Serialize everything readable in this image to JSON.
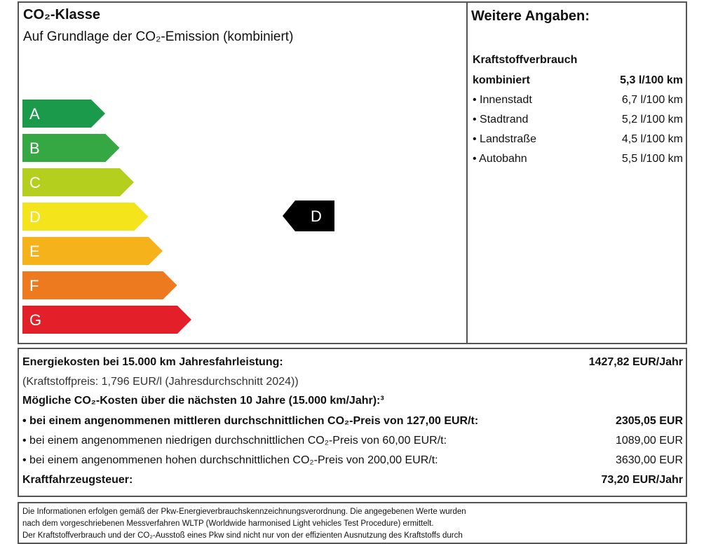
{
  "header": {
    "title": "CO₂-Klasse",
    "subtitle": "Auf Grundlage der CO₂-Emission (kombiniert)"
  },
  "energy_classes": [
    {
      "label": "A",
      "color": "#1a9a4a"
    },
    {
      "label": "B",
      "color": "#35a843"
    },
    {
      "label": "C",
      "color": "#b5cf1f"
    },
    {
      "label": "D",
      "color": "#f3e41b"
    },
    {
      "label": "E",
      "color": "#f6b21b"
    },
    {
      "label": "F",
      "color": "#ee7a1f"
    },
    {
      "label": "G",
      "color": "#e3202a"
    }
  ],
  "current_class": "D",
  "details": {
    "title": "Weitere Angaben:",
    "subtitle": "Kraftstoffverbrauch",
    "rows": [
      [
        "kombiniert",
        "5,3 l/100 km"
      ],
      [
        "Innenstadt",
        "6,7 l/100 km"
      ],
      [
        "Stadtrand",
        "5,2 l/100 km"
      ],
      [
        "Landstraße",
        "4,5 l/100 km"
      ],
      [
        "Autobahn",
        "5,5 l/100 km"
      ]
    ]
  },
  "costs": {
    "energy_label": "Energiekosten bei 15.000 km Jahresfahrleistung:",
    "energy_value": "1427,82 EUR/Jahr",
    "energy_note": "(Kraftstoffpreis: 1,796 EUR/l (Jahresdurchschnitt 2024))",
    "co2_heading": "Mögliche CO₂-Kosten über die nächsten 10 Jahre (15.000 km/Jahr):³",
    "co2_rows": [
      [
        "bei einem angenommenen mittleren durchschnittlichen CO₂-Preis von 127,00 EUR/t:",
        "2305,05 EUR"
      ],
      [
        "bei einem angenommenen niedrigen durchschnittlichen CO₂-Preis von 60,00 EUR/t:",
        "1089,00 EUR"
      ],
      [
        "bei einem angenommenen hohen durchschnittlichen CO₂-Preis von 200,00 EUR/t:",
        "3630,00 EUR"
      ]
    ],
    "tax_label": "Kraftfahrzeugsteuer:",
    "tax_value": "73,20 EUR/Jahr"
  },
  "footer": {
    "lines": [
      "Die Informationen erfolgen gemäß der Pkw-Energieverbrauchskennzeichnungsverordnung. Die angegebenen Werte wurden",
      "nach dem vorgeschriebenen Messverfahren WLTP (Worldwide harmonised Light vehicles Test Procedure) ermittelt.",
      "Der Kraftstoffverbrauch und der CO₂-Ausstoß eines Pkw sind nicht nur von der effizienten Ausnutzung des Kraftstoffs durch"
    ]
  }
}
